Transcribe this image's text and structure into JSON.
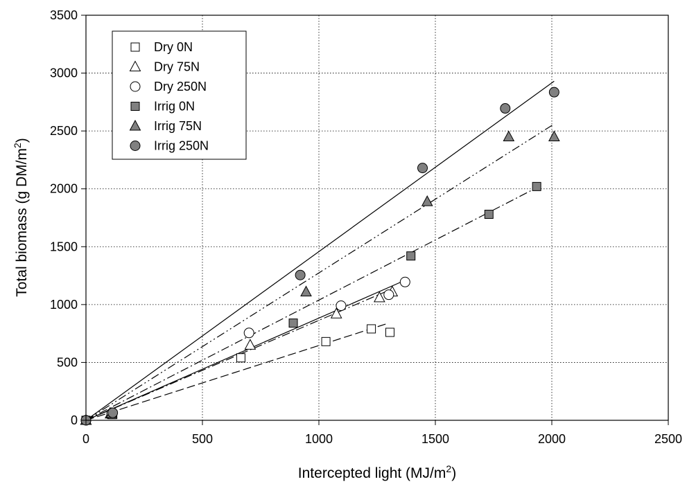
{
  "chart_data": {
    "type": "scatter",
    "xlabel_main": "Intercepted light (MJ/m",
    "xlabel_sup": "2",
    "xlabel_end": ")",
    "ylabel_main": "Total biomass (g DM/m",
    "ylabel_sup": "2",
    "ylabel_end": ")",
    "xlim": [
      0,
      2500
    ],
    "ylim": [
      0,
      3500
    ],
    "xticks": [
      "0",
      "500",
      "1000",
      "1500",
      "2000",
      "2500"
    ],
    "yticks": [
      "0",
      "500",
      "1000",
      "1500",
      "2000",
      "2500",
      "3000",
      "3500"
    ],
    "grid": "dotted",
    "legend_position": "top-left",
    "series": [
      {
        "name": "Dry 0N",
        "marker": "square",
        "fill": "#ffffff",
        "points": [
          [
            0,
            0
          ],
          [
            110,
            50
          ],
          [
            665,
            540
          ],
          [
            1030,
            680
          ],
          [
            1225,
            790
          ],
          [
            1305,
            760
          ]
        ],
        "fit": {
          "x": [
            0,
            1300
          ],
          "y": [
            0,
            840
          ],
          "dash": "dash"
        }
      },
      {
        "name": "Dry 75N",
        "marker": "triangle",
        "fill": "#ffffff",
        "points": [
          [
            0,
            0
          ],
          [
            105,
            55
          ],
          [
            705,
            650
          ],
          [
            1075,
            920
          ],
          [
            1260,
            1060
          ],
          [
            1315,
            1110
          ]
        ],
        "fit": {
          "x": [
            0,
            1320
          ],
          "y": [
            0,
            1140
          ],
          "dash": "dashdot"
        }
      },
      {
        "name": "Dry 250N",
        "marker": "circle",
        "fill": "#ffffff",
        "points": [
          [
            0,
            0
          ],
          [
            110,
            60
          ],
          [
            700,
            755
          ],
          [
            1095,
            990
          ],
          [
            1300,
            1085
          ],
          [
            1370,
            1195
          ]
        ],
        "fit": {
          "x": [
            0,
            1370
          ],
          "y": [
            0,
            1210
          ],
          "dash": "solid"
        }
      },
      {
        "name": "Irrig 0N",
        "marker": "square",
        "fill": "#808080",
        "points": [
          [
            0,
            0
          ],
          [
            115,
            50
          ],
          [
            890,
            840
          ],
          [
            1395,
            1420
          ],
          [
            1730,
            1780
          ],
          [
            1935,
            2020
          ]
        ],
        "fit": {
          "x": [
            0,
            1935
          ],
          "y": [
            0,
            2010
          ],
          "dash": "dashdot"
        }
      },
      {
        "name": "Irrig 75N",
        "marker": "triangle",
        "fill": "#808080",
        "points": [
          [
            0,
            0
          ],
          [
            110,
            60
          ],
          [
            945,
            1110
          ],
          [
            1465,
            1890
          ],
          [
            1815,
            2450
          ],
          [
            2010,
            2450
          ]
        ],
        "fit": {
          "x": [
            0,
            2010
          ],
          "y": [
            0,
            2560
          ],
          "dash": "dashdotdot"
        }
      },
      {
        "name": "Irrig 250N",
        "marker": "circle",
        "fill": "#808080",
        "points": [
          [
            0,
            0
          ],
          [
            115,
            65
          ],
          [
            920,
            1255
          ],
          [
            1445,
            2180
          ],
          [
            1800,
            2695
          ],
          [
            2010,
            2835
          ]
        ],
        "fit": {
          "x": [
            0,
            2010
          ],
          "y": [
            0,
            2930
          ],
          "dash": "solid"
        }
      }
    ]
  }
}
